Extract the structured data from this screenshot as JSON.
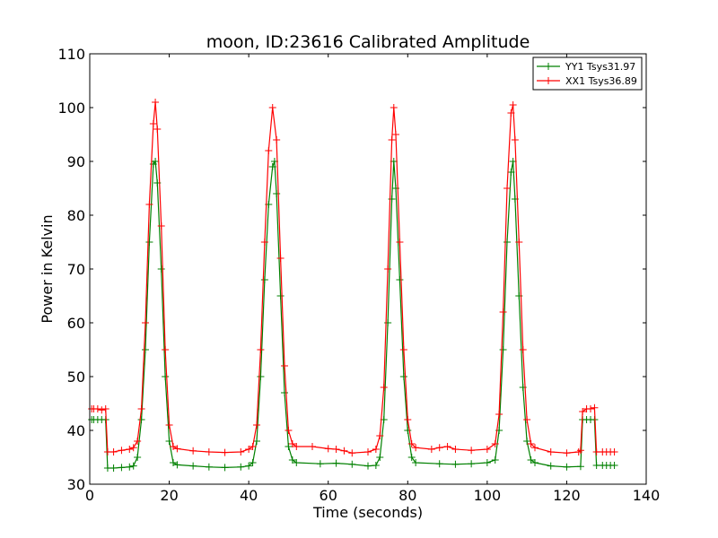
{
  "chart_data": {
    "type": "line",
    "title": "moon, ID:23616 Calibrated Amplitude",
    "xlabel": "Time (seconds)",
    "ylabel": "Power in Kelvin",
    "xlim": [
      0,
      140
    ],
    "ylim": [
      30,
      110
    ],
    "xticks": [
      "0",
      "20",
      "40",
      "60",
      "80",
      "100",
      "120",
      "140"
    ],
    "yticks": [
      "30",
      "40",
      "50",
      "60",
      "70",
      "80",
      "90",
      "100",
      "110"
    ],
    "grid": false,
    "legend_position": "top-right",
    "marker": "plus",
    "series": [
      {
        "name": "YY1 Tsys31.97",
        "color": "#008000",
        "points": [
          [
            0.5,
            42
          ],
          [
            1,
            42
          ],
          [
            2,
            42
          ],
          [
            3,
            42
          ],
          [
            4,
            42
          ],
          [
            4.5,
            33
          ],
          [
            6,
            33
          ],
          [
            8,
            33.1
          ],
          [
            10,
            33.2
          ],
          [
            11,
            33.4
          ],
          [
            12,
            35
          ],
          [
            13,
            42
          ],
          [
            14,
            55
          ],
          [
            15,
            75
          ],
          [
            16,
            89.5
          ],
          [
            16.5,
            90
          ],
          [
            17,
            86
          ],
          [
            18,
            70
          ],
          [
            19,
            50
          ],
          [
            20,
            38
          ],
          [
            21,
            34
          ],
          [
            22,
            33.6
          ],
          [
            26,
            33.4
          ],
          [
            30,
            33.2
          ],
          [
            34,
            33.1
          ],
          [
            38,
            33.2
          ],
          [
            40,
            33.4
          ],
          [
            41,
            34
          ],
          [
            42,
            38
          ],
          [
            43,
            50
          ],
          [
            44,
            68
          ],
          [
            45,
            82
          ],
          [
            46,
            89
          ],
          [
            46.5,
            90
          ],
          [
            47,
            84
          ],
          [
            48,
            65
          ],
          [
            49,
            47
          ],
          [
            50,
            37
          ],
          [
            51,
            34.5
          ],
          [
            52,
            34
          ],
          [
            58,
            33.8
          ],
          [
            62,
            33.9
          ],
          [
            66,
            33.7
          ],
          [
            70,
            33.4
          ],
          [
            72,
            33.5
          ],
          [
            73,
            35
          ],
          [
            74,
            42
          ],
          [
            75,
            60
          ],
          [
            76,
            83
          ],
          [
            76.5,
            90
          ],
          [
            77,
            85
          ],
          [
            78,
            68
          ],
          [
            79,
            50
          ],
          [
            80,
            40
          ],
          [
            81,
            35
          ],
          [
            82,
            34
          ],
          [
            88,
            33.8
          ],
          [
            92,
            33.7
          ],
          [
            96,
            33.8
          ],
          [
            100,
            34
          ],
          [
            102,
            34.5
          ],
          [
            103,
            40
          ],
          [
            104,
            55
          ],
          [
            105,
            75
          ],
          [
            106,
            88
          ],
          [
            106.5,
            90
          ],
          [
            107,
            83
          ],
          [
            108,
            65
          ],
          [
            109,
            48
          ],
          [
            110,
            38
          ],
          [
            111,
            34.5
          ],
          [
            112,
            34
          ],
          [
            116,
            33.4
          ],
          [
            120,
            33.2
          ],
          [
            123.5,
            33.3
          ],
          [
            124,
            42
          ],
          [
            125,
            42
          ],
          [
            126,
            42
          ],
          [
            127,
            42
          ],
          [
            127.5,
            33.5
          ],
          [
            129,
            33.5
          ],
          [
            130,
            33.5
          ],
          [
            131,
            33.5
          ],
          [
            132,
            33.5
          ]
        ]
      },
      {
        "name": "XX1 Tsys36.89",
        "color": "#ff0000",
        "points": [
          [
            0.5,
            44
          ],
          [
            1,
            44
          ],
          [
            2,
            44
          ],
          [
            3,
            43.8
          ],
          [
            4,
            44
          ],
          [
            4.5,
            36
          ],
          [
            6,
            36
          ],
          [
            8,
            36.3
          ],
          [
            10,
            36.5
          ],
          [
            11,
            36.8
          ],
          [
            12,
            38
          ],
          [
            13,
            44
          ],
          [
            14,
            60
          ],
          [
            15,
            82
          ],
          [
            16,
            97
          ],
          [
            16.5,
            101
          ],
          [
            17,
            96
          ],
          [
            18,
            78
          ],
          [
            19,
            55
          ],
          [
            20,
            41
          ],
          [
            21,
            37
          ],
          [
            22,
            36.6
          ],
          [
            26,
            36.2
          ],
          [
            30,
            36
          ],
          [
            34,
            35.9
          ],
          [
            38,
            36
          ],
          [
            40,
            36.5
          ],
          [
            41,
            37
          ],
          [
            42,
            41
          ],
          [
            43,
            55
          ],
          [
            44,
            75
          ],
          [
            45,
            92
          ],
          [
            46,
            100
          ],
          [
            47,
            94
          ],
          [
            48,
            72
          ],
          [
            49,
            52
          ],
          [
            50,
            40
          ],
          [
            51,
            37.5
          ],
          [
            52,
            37
          ],
          [
            56,
            37
          ],
          [
            60,
            36.6
          ],
          [
            62,
            36.5
          ],
          [
            64,
            36.2
          ],
          [
            66,
            35.8
          ],
          [
            70,
            36
          ],
          [
            72,
            36.5
          ],
          [
            73,
            39
          ],
          [
            74,
            48
          ],
          [
            75,
            70
          ],
          [
            76,
            94
          ],
          [
            76.5,
            100
          ],
          [
            77,
            95
          ],
          [
            78,
            75
          ],
          [
            79,
            55
          ],
          [
            80,
            42
          ],
          [
            81,
            37.5
          ],
          [
            82,
            36.8
          ],
          [
            86,
            36.5
          ],
          [
            88,
            36.8
          ],
          [
            90,
            37
          ],
          [
            92,
            36.5
          ],
          [
            96,
            36.3
          ],
          [
            100,
            36.5
          ],
          [
            102,
            37.5
          ],
          [
            103,
            43
          ],
          [
            104,
            62
          ],
          [
            105,
            85
          ],
          [
            106,
            99
          ],
          [
            106.5,
            100.5
          ],
          [
            107,
            94
          ],
          [
            108,
            75
          ],
          [
            109,
            55
          ],
          [
            110,
            42
          ],
          [
            111,
            37.5
          ],
          [
            112,
            36.8
          ],
          [
            116,
            36
          ],
          [
            120,
            35.8
          ],
          [
            123,
            36
          ],
          [
            123.5,
            36.3
          ],
          [
            124,
            43.5
          ],
          [
            125,
            44
          ],
          [
            126,
            44
          ],
          [
            127,
            44.2
          ],
          [
            127.5,
            36
          ],
          [
            129,
            36
          ],
          [
            130,
            36
          ],
          [
            131,
            36
          ],
          [
            132,
            36
          ]
        ]
      }
    ]
  }
}
